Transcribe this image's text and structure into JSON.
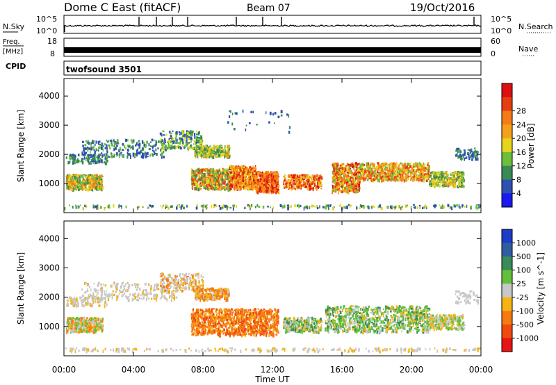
{
  "header": {
    "title": "Dome C East (fitACF)",
    "beam": "Beam 07",
    "date": "19/Oct/2016"
  },
  "panels": {
    "nsky": {
      "label": "N.Sky",
      "ticks_left": [
        "10^5",
        "10^0"
      ],
      "right_label": "N.Search",
      "ticks_right": [
        "10^5",
        "10^0"
      ]
    },
    "freq": {
      "label_top": "Freq.",
      "label_bottom": "[MHz]",
      "ticks_left": [
        "18",
        "8"
      ],
      "right_label": "Nave",
      "ticks_right": [
        "60",
        "0"
      ]
    },
    "cpid": {
      "label": "CPID",
      "value": "twofsound 3501"
    }
  },
  "chart_data": [
    {
      "type": "heatmap",
      "name": "power",
      "ylabel": "Slant Range [km]",
      "yticks": [
        "1000",
        "2000",
        "3000",
        "4000"
      ],
      "ylim": [
        0,
        4600
      ],
      "colorbar_label": "Power [dB]",
      "colorbar_ticks": [
        "4",
        "8",
        "12",
        "16",
        "20",
        "24",
        "28"
      ],
      "colorbar_colors": [
        "#1a1aee",
        "#2e50b0",
        "#3a8a55",
        "#6cbe3c",
        "#e6d41e",
        "#f5a01a",
        "#f57a18",
        "#e63d14",
        "#dc1010"
      ]
    },
    {
      "type": "heatmap",
      "name": "velocity",
      "ylabel": "Slant Range [km]",
      "yticks": [
        "1000",
        "2000",
        "3000",
        "4000"
      ],
      "ylim": [
        0,
        4600
      ],
      "colorbar_label": "Velocity [m s^-1]",
      "colorbar_ticks": [
        "1000",
        "500",
        "100",
        "25",
        "-25",
        "-100",
        "-500",
        "-1000"
      ],
      "colorbar_colors": [
        "#1e3cc8",
        "#2e5ea0",
        "#3a8a5a",
        "#62c03a",
        "#c8c8c8",
        "#f5b414",
        "#f57a14",
        "#f04a10",
        "#e61414"
      ]
    }
  ],
  "xaxis": {
    "label": "Time UT",
    "ticks": [
      "00:00",
      "04:00",
      "08:00",
      "12:00",
      "16:00",
      "20:00",
      "00:00"
    ]
  }
}
